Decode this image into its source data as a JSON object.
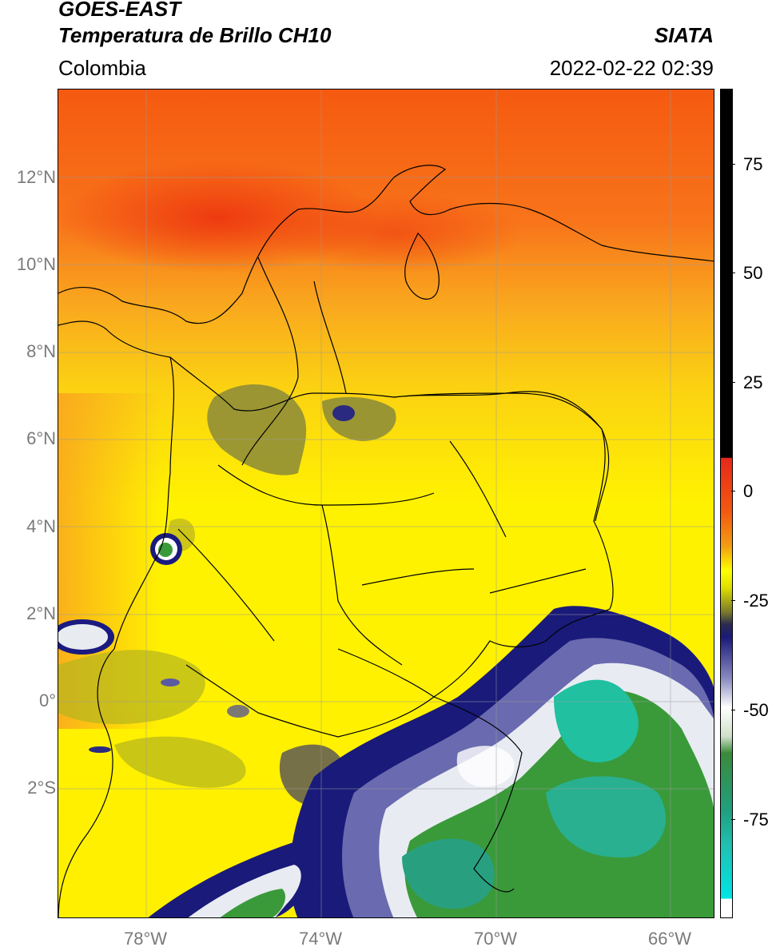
{
  "header": {
    "title_line1": "GOES-EAST",
    "title_line2": "Temperatura de Brillo CH10",
    "institution": "SIATA",
    "region": "Colombia",
    "timestamp": "2022-02-22 02:39"
  },
  "map": {
    "lat_labels": [
      "12°N",
      "10°N",
      "8°N",
      "6°N",
      "4°N",
      "2°N",
      "0°",
      "2°S"
    ],
    "lon_labels": [
      "78°W",
      "74°W",
      "70°W",
      "66°W"
    ]
  },
  "colorbar": {
    "tick_labels": [
      "75",
      "50",
      "25",
      "0",
      "-25",
      "-50",
      "-75"
    ],
    "colors": {
      "black": "#000000",
      "red": "#e8281a",
      "orange": "#f39c12",
      "yellow": "#ffff00",
      "olive": "#7a7a2a",
      "navy": "#1a1a7a",
      "white": "#ffffff",
      "green": "#3a9a3a",
      "teal": "#20c0a0",
      "cyan": "#00e5e5"
    }
  }
}
